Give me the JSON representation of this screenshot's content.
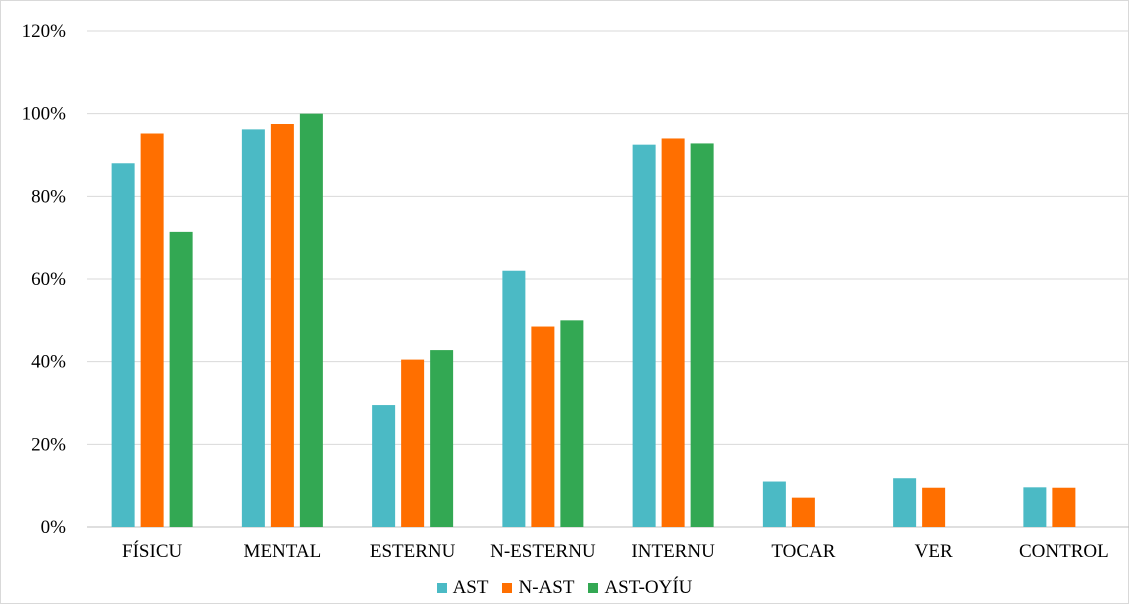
{
  "chart_data": {
    "type": "bar",
    "categories": [
      "FÍSICU",
      "MENTAL",
      "ESTERNU",
      "N-ESTERNU",
      "INTERNU",
      "TOCAR",
      "VER",
      "CONTROL"
    ],
    "series": [
      {
        "name": "AST",
        "color": "#4bbac5",
        "values": [
          0.88,
          0.962,
          0.295,
          0.62,
          0.925,
          0.11,
          0.118,
          0.096
        ]
      },
      {
        "name": "N-AST",
        "color": "#ff6f00",
        "values": [
          0.952,
          0.975,
          0.405,
          0.485,
          0.94,
          0.071,
          0.095,
          0.095
        ]
      },
      {
        "name": "AST-OYÍU",
        "color": "#33a853",
        "values": [
          0.714,
          1.0,
          0.428,
          0.5,
          0.928,
          null,
          null,
          null
        ]
      }
    ],
    "y_ticks": [
      "0%",
      "20%",
      "40%",
      "60%",
      "80%",
      "100%",
      "120%"
    ],
    "ylim": [
      0,
      1.2
    ],
    "grid": true,
    "legend_position": "bottom"
  }
}
